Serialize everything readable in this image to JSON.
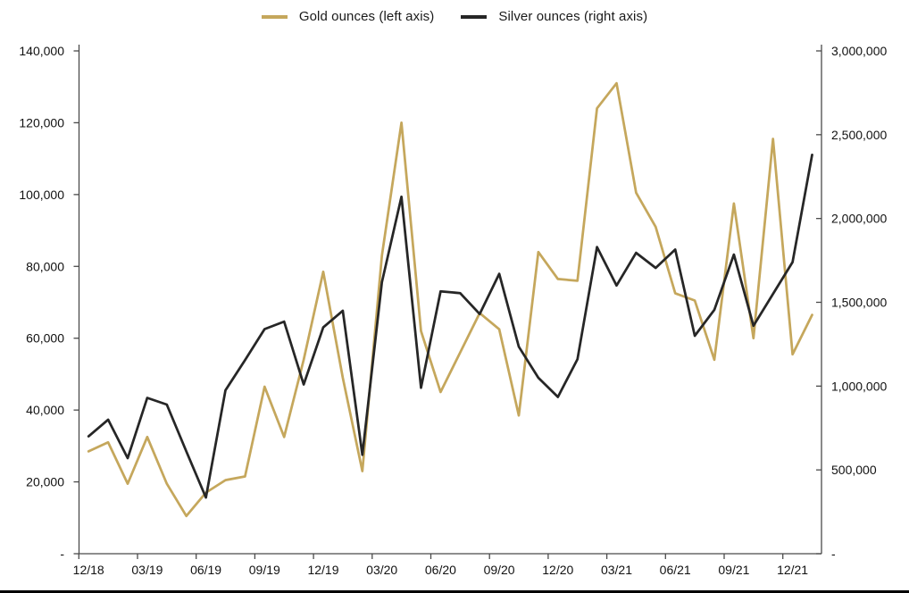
{
  "legend": {
    "items": [
      {
        "label": "Gold ounces (left axis)",
        "color": "#C5A75C"
      },
      {
        "label": "Silver ounces (right axis)",
        "color": "#262626"
      }
    ]
  },
  "axes_colors": {
    "axis_line": "#4a4a4a",
    "tick_text": "#111111"
  },
  "chart_data": {
    "type": "line",
    "title": "",
    "grid": false,
    "legend_position": "top",
    "categories": [
      "12/18",
      "01/19",
      "02/19",
      "03/19",
      "04/19",
      "05/19",
      "06/19",
      "07/19",
      "08/19",
      "09/19",
      "10/19",
      "11/19",
      "12/19",
      "01/20",
      "02/20",
      "03/20",
      "04/20",
      "05/20",
      "06/20",
      "07/20",
      "08/20",
      "09/20",
      "10/20",
      "11/20",
      "12/20",
      "01/21",
      "02/21",
      "03/21",
      "04/21",
      "05/21",
      "06/21",
      "07/21",
      "08/21",
      "09/21",
      "10/21",
      "11/21",
      "12/21",
      "01/22"
    ],
    "x_axis_tick_labels": [
      "12/18",
      "03/19",
      "06/19",
      "09/19",
      "12/19",
      "03/20",
      "06/20",
      "09/20",
      "12/20",
      "03/21",
      "06/21",
      "09/21",
      "12/21"
    ],
    "series": [
      {
        "name": "Gold ounces (left axis)",
        "axis": "left",
        "color": "#C5A75C",
        "values": [
          28500,
          31000,
          19500,
          32500,
          19500,
          10500,
          17000,
          20500,
          21500,
          46500,
          32500,
          54000,
          78500,
          49000,
          23000,
          83000,
          120000,
          62000,
          45000,
          56000,
          67000,
          62500,
          38500,
          84000,
          76500,
          76000,
          124000,
          131000,
          100500,
          91000,
          72500,
          70500,
          54000,
          97500,
          60000,
          115500,
          55500,
          66500
        ]
      },
      {
        "name": "Silver ounces (right axis)",
        "axis": "right",
        "color": "#262626",
        "values": [
          700000,
          800000,
          570000,
          930000,
          890000,
          610000,
          335000,
          975000,
          1155000,
          1340000,
          1385000,
          1010000,
          1350000,
          1450000,
          590000,
          1620000,
          2130000,
          990000,
          1565000,
          1555000,
          1430000,
          1670000,
          1235000,
          1050000,
          935000,
          1160000,
          1830000,
          1600000,
          1795000,
          1705000,
          1815000,
          1300000,
          1455000,
          1785000,
          1360000,
          1550000,
          1740000,
          2380000
        ]
      }
    ],
    "left_axis": {
      "min": 0,
      "max": 140000,
      "step": 20000,
      "labels_bottom_up": [
        "-",
        "20,000",
        "40,000",
        "60,000",
        "80,000",
        "100,000",
        "120,000",
        "140,000"
      ]
    },
    "right_axis": {
      "min": 0,
      "max": 3000000,
      "step": 500000,
      "labels_bottom_up": [
        "-",
        "500,000",
        "1,000,000",
        "1,500,000",
        "2,000,000",
        "2,500,000",
        "3,000,000"
      ]
    }
  }
}
